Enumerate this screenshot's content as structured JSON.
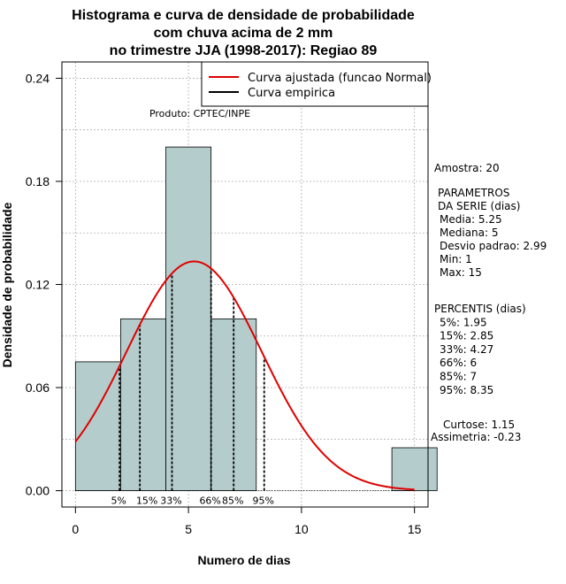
{
  "chart_data": {
    "type": "bar",
    "title_lines": [
      "Histograma e curva de densidade de probabilidade",
      "com chuva acima de 2 mm",
      "no trimestre JJA (1998-2017): Regiao 89"
    ],
    "xlabel": "Numero de dias",
    "ylabel": "Densidade de probabilidade",
    "xlim": [
      -0.6,
      15.6
    ],
    "ylim": [
      -0.0095,
      0.2495
    ],
    "x_ticks": [
      0,
      5,
      10,
      15
    ],
    "x_tick_labels": [
      "0",
      "5",
      "10",
      "15"
    ],
    "y_ticks": [
      0.0,
      0.06,
      0.12,
      0.18,
      0.24
    ],
    "y_tick_labels": [
      "0.00",
      "0.06",
      "0.12",
      "0.18",
      "0.24"
    ],
    "grid": true,
    "legend_position": "top-right",
    "bars": [
      {
        "x0": 0,
        "x1": 2,
        "density": 0.075
      },
      {
        "x0": 2,
        "x1": 4,
        "density": 0.1
      },
      {
        "x0": 4,
        "x1": 6,
        "density": 0.2
      },
      {
        "x0": 6,
        "x1": 8,
        "density": 0.1
      },
      {
        "x0": 8,
        "x1": 10,
        "density": 0.0
      },
      {
        "x0": 10,
        "x1": 12,
        "density": 0.0
      },
      {
        "x0": 12,
        "x1": 14,
        "density": 0.0
      },
      {
        "x0": 14,
        "x1": 16,
        "density": 0.025
      }
    ],
    "series": [
      {
        "name": "Curva ajustada (funcao Normal)",
        "color": "#e00000",
        "distribution": "normal",
        "mean": 5.25,
        "sd": 2.99,
        "x_range": [
          0,
          15
        ]
      },
      {
        "name": "Curva empirica",
        "color": "#000000"
      }
    ],
    "percentile_markers": [
      {
        "label": "5%",
        "x": 1.95
      },
      {
        "label": "15%",
        "x": 2.85
      },
      {
        "label": "33%",
        "x": 4.27
      },
      {
        "label": "66%",
        "x": 6
      },
      {
        "label": "85%",
        "x": 7
      },
      {
        "label": "95%",
        "x": 8.35
      }
    ],
    "annotations": {
      "produto": "Produto: CPTEC/INPE",
      "amostra": "Amostra: 20",
      "parametros_lines": [
        "PARAMETROS",
        "DA SERIE (dias)",
        "Media: 5.25",
        "Mediana: 5",
        "Desvio padrao: 2.99",
        "Min: 1",
        "Max: 15"
      ],
      "percentis_lines": [
        "PERCENTIS (dias)",
        "5%: 1.95",
        "15%: 2.85",
        "33%: 4.27",
        "66%: 6",
        "85%: 7",
        "95%: 8.35"
      ],
      "curtose": "Curtose: 1.15",
      "assimetria": "Assimetria: -0.23"
    },
    "colors": {
      "bar_fill": "#b4cccc",
      "bar_stroke": "#000000",
      "grid": "#b0b0b0",
      "curve": "#e00000"
    }
  }
}
